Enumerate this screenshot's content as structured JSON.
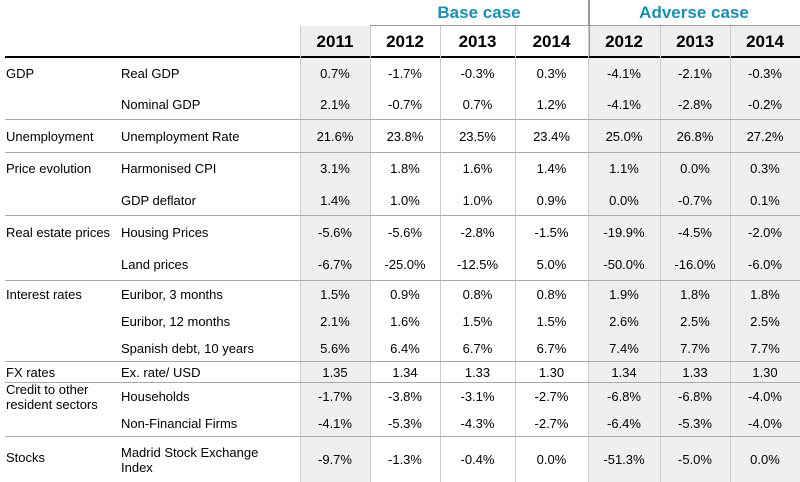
{
  "table": {
    "group_headers": [
      "Base case",
      "Adverse case"
    ],
    "columns": [
      "2011",
      "2012",
      "2013",
      "2014",
      "2012",
      "2013",
      "2014"
    ],
    "sections": [
      {
        "label": "GDP",
        "rows": [
          {
            "label": "Real GDP",
            "values": [
              "0.7%",
              "-1.7%",
              "-0.3%",
              "0.3%",
              "-4.1%",
              "-2.1%",
              "-0.3%"
            ]
          },
          {
            "label": "Nominal GDP",
            "values": [
              "2.1%",
              "-0.7%",
              "0.7%",
              "1.2%",
              "-4.1%",
              "-2.8%",
              "-0.2%"
            ]
          }
        ]
      },
      {
        "label": "Unemployment",
        "rows": [
          {
            "label": "Unemployment Rate",
            "values": [
              "21.6%",
              "23.8%",
              "23.5%",
              "23.4%",
              "25.0%",
              "26.8%",
              "27.2%"
            ]
          }
        ]
      },
      {
        "label": "Price evolution",
        "rows": [
          {
            "label": "Harmonised CPI",
            "values": [
              "3.1%",
              "1.8%",
              "1.6%",
              "1.4%",
              "1.1%",
              "0.0%",
              "0.3%"
            ]
          },
          {
            "label": "GDP deflator",
            "values": [
              "1.4%",
              "1.0%",
              "1.0%",
              "0.9%",
              "0.0%",
              "-0.7%",
              "0.1%"
            ]
          }
        ]
      },
      {
        "label": "Real estate prices",
        "rows": [
          {
            "label": "Housing Prices",
            "values": [
              "-5.6%",
              "-5.6%",
              "-2.8%",
              "-1.5%",
              "-19.9%",
              "-4.5%",
              "-2.0%"
            ]
          },
          {
            "label": "Land prices",
            "values": [
              "-6.7%",
              "-25.0%",
              "-12.5%",
              "5.0%",
              "-50.0%",
              "-16.0%",
              "-6.0%"
            ]
          }
        ]
      },
      {
        "label": "Interest rates",
        "rows": [
          {
            "label": "Euribor, 3 months",
            "values": [
              "1.5%",
              "0.9%",
              "0.8%",
              "0.8%",
              "1.9%",
              "1.8%",
              "1.8%"
            ]
          },
          {
            "label": "Euribor, 12 months",
            "values": [
              "2.1%",
              "1.6%",
              "1.5%",
              "1.5%",
              "2.6%",
              "2.5%",
              "2.5%"
            ]
          },
          {
            "label": "Spanish debt, 10 years",
            "values": [
              "5.6%",
              "6.4%",
              "6.7%",
              "6.7%",
              "7.4%",
              "7.7%",
              "7.7%"
            ]
          }
        ]
      },
      {
        "label": "FX rates",
        "rows": [
          {
            "label": "Ex. rate/ USD",
            "values": [
              "1.35",
              "1.34",
              "1.33",
              "1.30",
              "1.34",
              "1.33",
              "1.30"
            ]
          }
        ]
      },
      {
        "label": "Credit to other resident sectors",
        "rows": [
          {
            "label": "Households",
            "values": [
              "-1.7%",
              "-3.8%",
              "-3.1%",
              "-2.7%",
              "-6.8%",
              "-6.8%",
              "-4.0%"
            ]
          },
          {
            "label": "Non-Financial Firms",
            "values": [
              "-4.1%",
              "-5.3%",
              "-4.3%",
              "-2.7%",
              "-6.4%",
              "-5.3%",
              "-4.0%"
            ]
          }
        ]
      },
      {
        "label": "Stocks",
        "rows": [
          {
            "label": "Madrid Stock Exchange Index",
            "values": [
              "-9.7%",
              "-1.3%",
              "-0.4%",
              "0.0%",
              "-51.3%",
              "-5.0%",
              "0.0%"
            ]
          }
        ]
      }
    ]
  }
}
